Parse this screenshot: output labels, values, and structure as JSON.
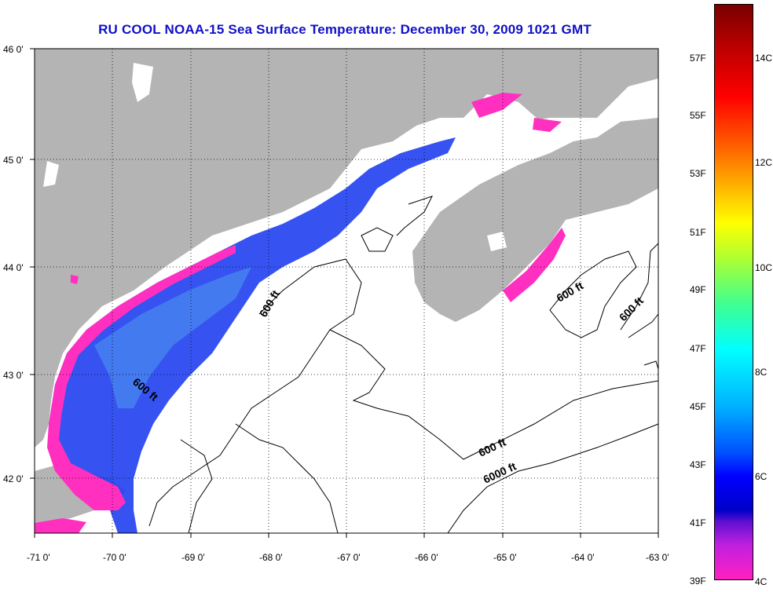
{
  "title": "RU COOL  NOAA-15  Sea Surface Temperature:  December 30, 2009 1021 GMT",
  "map": {
    "lat_labels": [
      "46 0'",
      "45 0'",
      "44 0'",
      "43 0'",
      "42 0'"
    ],
    "lon_labels": [
      "-71 0'",
      "-70 0'",
      "-69 0'",
      "-68 0'",
      "-67 0'",
      "-66 0'",
      "-65 0'",
      "-64 0'",
      "-63 0'"
    ],
    "lon_range": [
      -71,
      -63
    ],
    "lat_range": [
      41.5,
      46
    ],
    "contour_labels": [
      "600 ft",
      "600 ft",
      "600 ft",
      "600 ft",
      "600 ft",
      "6000 ft"
    ],
    "land_color": "#b4b4b4",
    "water_color": "#ffffff"
  },
  "colorbar": {
    "fahrenheit": [
      "57F",
      "55F",
      "53F",
      "51F",
      "49F",
      "47F",
      "45F",
      "43F",
      "41F",
      "39F"
    ],
    "celsius": [
      "14C",
      "12C",
      "10C",
      "8C",
      "6C",
      "4C"
    ],
    "range_c": [
      4,
      15
    ]
  }
}
